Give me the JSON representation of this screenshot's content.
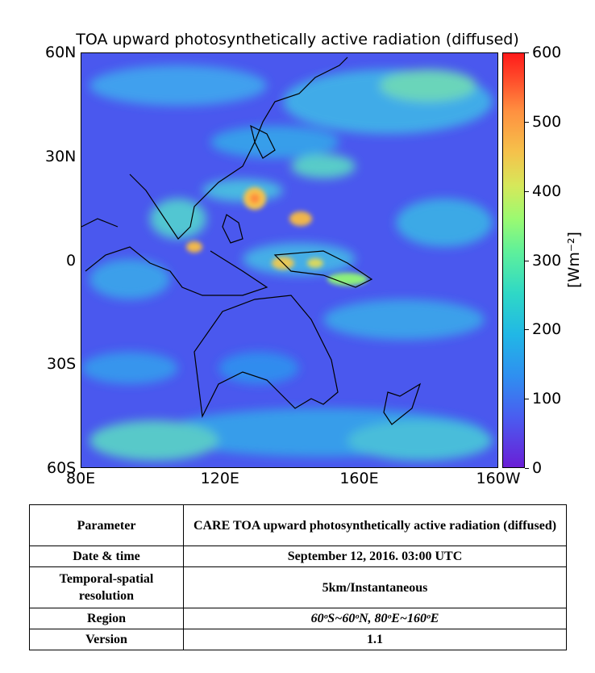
{
  "chart_data": {
    "type": "heatmap",
    "title": "TOA upward photosynthetically active radiation (diffused)",
    "x_ticks": [
      "80E",
      "120E",
      "160E",
      "160W"
    ],
    "y_ticks": [
      "60N",
      "30N",
      "0",
      "30S",
      "60S"
    ],
    "xlim": [
      "80E",
      "160W"
    ],
    "ylim": [
      "60S",
      "60N"
    ],
    "colorbar": {
      "label": "[Wm⁻²]",
      "range": [
        0,
        600
      ],
      "ticks": [
        "0",
        "100",
        "200",
        "300",
        "400",
        "500",
        "600"
      ],
      "colormap": "rainbow"
    }
  },
  "table": {
    "rows": [
      {
        "label": "Parameter",
        "value": "CARE TOA upward photosynthetically active radiation (diffused)"
      },
      {
        "label": "Date & time",
        "value": "September 12, 2016. 03:00 UTC"
      },
      {
        "label": "Temporal-spatial resolution",
        "value": "5km/Instantaneous"
      },
      {
        "label": "Region",
        "value": "60ᵒS~60ᵒN, 80ᵒE~160ᵒE"
      },
      {
        "label": "Version",
        "value": "1.1"
      }
    ]
  }
}
